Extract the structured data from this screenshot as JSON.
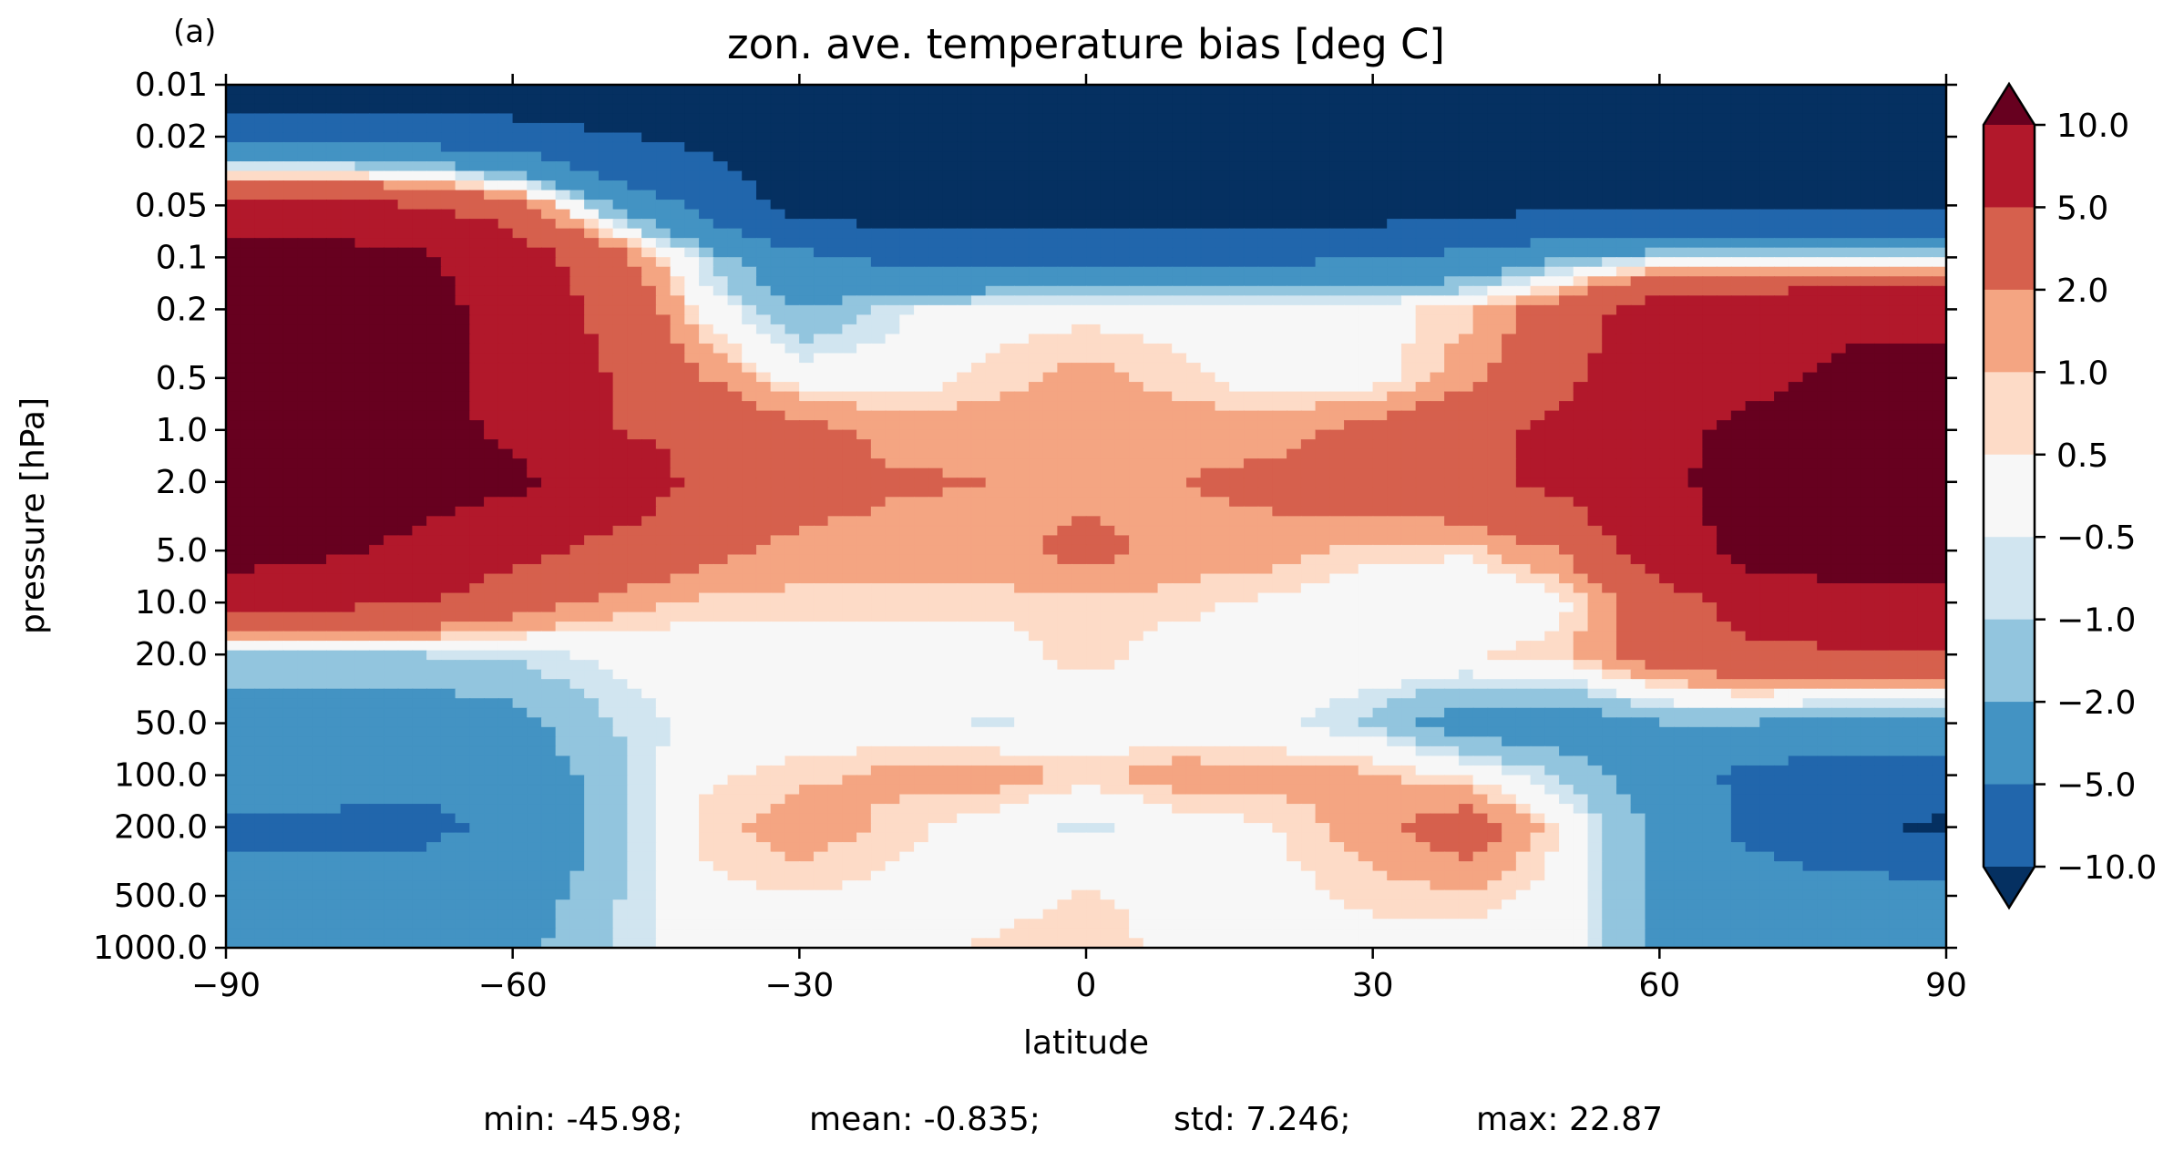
{
  "chart_data": {
    "type": "heatmap",
    "panel_label": "(a)",
    "title": "zon. ave. temperature bias [deg C]",
    "xlabel": "latitude",
    "ylabel": "pressure [hPa]",
    "xlim": [
      -90,
      90
    ],
    "x_ticks": [
      -90,
      -60,
      -30,
      0,
      30,
      60,
      90
    ],
    "x_tick_labels": [
      "−90",
      "−60",
      "−30",
      "0",
      "30",
      "60",
      "90"
    ],
    "ylim_hPa": [
      1000.0,
      0.01
    ],
    "y_scale": "log",
    "y_ticks": [
      0.01,
      0.02,
      0.05,
      0.1,
      0.2,
      0.5,
      1.0,
      2.0,
      5.0,
      10.0,
      20.0,
      50.0,
      100.0,
      200.0,
      500.0,
      1000.0
    ],
    "y_tick_labels": [
      "0.01",
      "0.02",
      "0.05",
      "0.1",
      "0.2",
      "0.5",
      "1.0",
      "2.0",
      "5.0",
      "10.0",
      "20.0",
      "50.0",
      "100.0",
      "200.0",
      "500.0",
      "1000.0"
    ],
    "levels": [
      -10.0,
      -5.0,
      -2.0,
      -1.0,
      -0.5,
      0.5,
      1.0,
      2.0,
      5.0,
      10.0
    ],
    "colorbar": {
      "tick_labels": [
        "10.0",
        "5.0",
        "2.0",
        "1.0",
        "0.5",
        "−0.5",
        "−1.0",
        "−2.0",
        "−5.0",
        "−10.0"
      ],
      "extend": "both",
      "colors_top_to_bottom": [
        "#67001f",
        "#b2182b",
        "#d6604d",
        "#f4a582",
        "#fddbc7",
        "#f7f7f7",
        "#d1e5f0",
        "#92c5de",
        "#4393c3",
        "#2166ac",
        "#053061"
      ]
    },
    "grid": "Latitude (deg) × pressure (hPa), approximate contoured bias (deg C) read from the figure",
    "lat": [
      -90,
      -80,
      -70,
      -60,
      -50,
      -40,
      -30,
      -20,
      -10,
      0,
      10,
      20,
      30,
      40,
      50,
      60,
      70,
      80,
      90
    ],
    "p": [
      0.01,
      0.05,
      0.1,
      0.2,
      0.5,
      1.0,
      2.0,
      5.0,
      10.0,
      20.0,
      50.0,
      100.0,
      200.0,
      500.0,
      1000.0
    ],
    "z": [
      [
        -15,
        -15,
        -15,
        -15,
        -15,
        -15,
        -15,
        -15,
        -15,
        -15,
        -15,
        -15,
        -15,
        -15,
        -15,
        -15,
        -15,
        -15,
        -15
      ],
      [
        6,
        6,
        5,
        3,
        -2,
        -6,
        -12,
        -13,
        -13,
        -13,
        -13,
        -13,
        -13,
        -12,
        -11,
        -10,
        -10,
        -10,
        -10
      ],
      [
        12,
        12,
        11,
        7,
        3,
        -1,
        -4,
        -6,
        -6,
        -6,
        -6,
        -6,
        -5,
        -4,
        -2,
        -1,
        -1,
        -1,
        -1
      ],
      [
        12,
        12,
        12,
        8,
        4,
        0.2,
        -2,
        -0.7,
        0.2,
        0.2,
        0.2,
        0.2,
        0.2,
        0.8,
        3,
        7,
        8,
        9,
        9
      ],
      [
        12,
        12,
        12,
        8,
        5,
        2,
        0,
        0,
        0.7,
        1.3,
        0.7,
        0,
        0,
        1.5,
        4,
        8,
        9,
        11,
        11
      ],
      [
        12,
        12,
        12,
        9,
        5,
        4,
        2.5,
        1.5,
        1.4,
        1.4,
        1.4,
        1.5,
        2.5,
        4,
        6,
        9,
        11,
        12,
        12
      ],
      [
        12,
        12,
        12,
        11,
        8,
        4,
        3,
        2.2,
        2,
        1.5,
        2,
        2.5,
        3,
        4,
        6,
        9,
        12,
        12,
        12
      ],
      [
        12,
        11,
        9,
        6,
        4,
        2.5,
        1.5,
        1.4,
        1.5,
        2.5,
        1.5,
        1.4,
        0.7,
        0.7,
        2,
        7,
        12,
        12,
        12
      ],
      [
        7,
        6,
        5,
        3,
        1.5,
        0.8,
        0.7,
        0.7,
        0.7,
        0.7,
        0.7,
        0.3,
        -0.2,
        -0.6,
        0.3,
        3,
        7,
        9,
        9
      ],
      [
        -1,
        -1,
        -1,
        -0.8,
        -0.3,
        0,
        0.2,
        0.2,
        0.1,
        0.8,
        0.1,
        0.2,
        0.3,
        0.5,
        0.8,
        3,
        4,
        4.5,
        4.5
      ],
      [
        -3,
        -3,
        -3,
        -2.5,
        -1,
        -0.2,
        0,
        -0.2,
        -0.6,
        -0.2,
        -0.2,
        -0.3,
        -1.2,
        -3,
        -3,
        -2,
        -2,
        -3,
        -3
      ],
      [
        -3,
        -3,
        -4,
        -3,
        -1.5,
        0.3,
        0.8,
        1.2,
        1.5,
        0.8,
        1.5,
        1.3,
        1.2,
        0.3,
        -1.2,
        -3,
        -6,
        -6,
        -6
      ],
      [
        -6,
        -6,
        -6,
        -4,
        -1.5,
        0.7,
        1.5,
        0.8,
        0,
        -0.7,
        0,
        0.5,
        1.5,
        3,
        0.3,
        -2.5,
        -6,
        -9,
        -11
      ],
      [
        -3,
        -3,
        -3,
        -3,
        -1.2,
        0.3,
        0.5,
        0.2,
        0.2,
        0.6,
        0.2,
        0.2,
        0.7,
        0.8,
        0.1,
        -2.5,
        -3,
        -3,
        -3
      ],
      [
        -2.5,
        -2.5,
        -2.5,
        -2.5,
        -1,
        0.1,
        0.2,
        0.2,
        0.6,
        0.8,
        0.3,
        0.2,
        0.2,
        0.2,
        0.1,
        -2.5,
        -3,
        -3,
        -3
      ]
    ]
  },
  "stats": {
    "min": "min: -45.98;",
    "mean": "mean: -0.835;",
    "std": "std: 7.246;",
    "max": "max: 22.87"
  }
}
